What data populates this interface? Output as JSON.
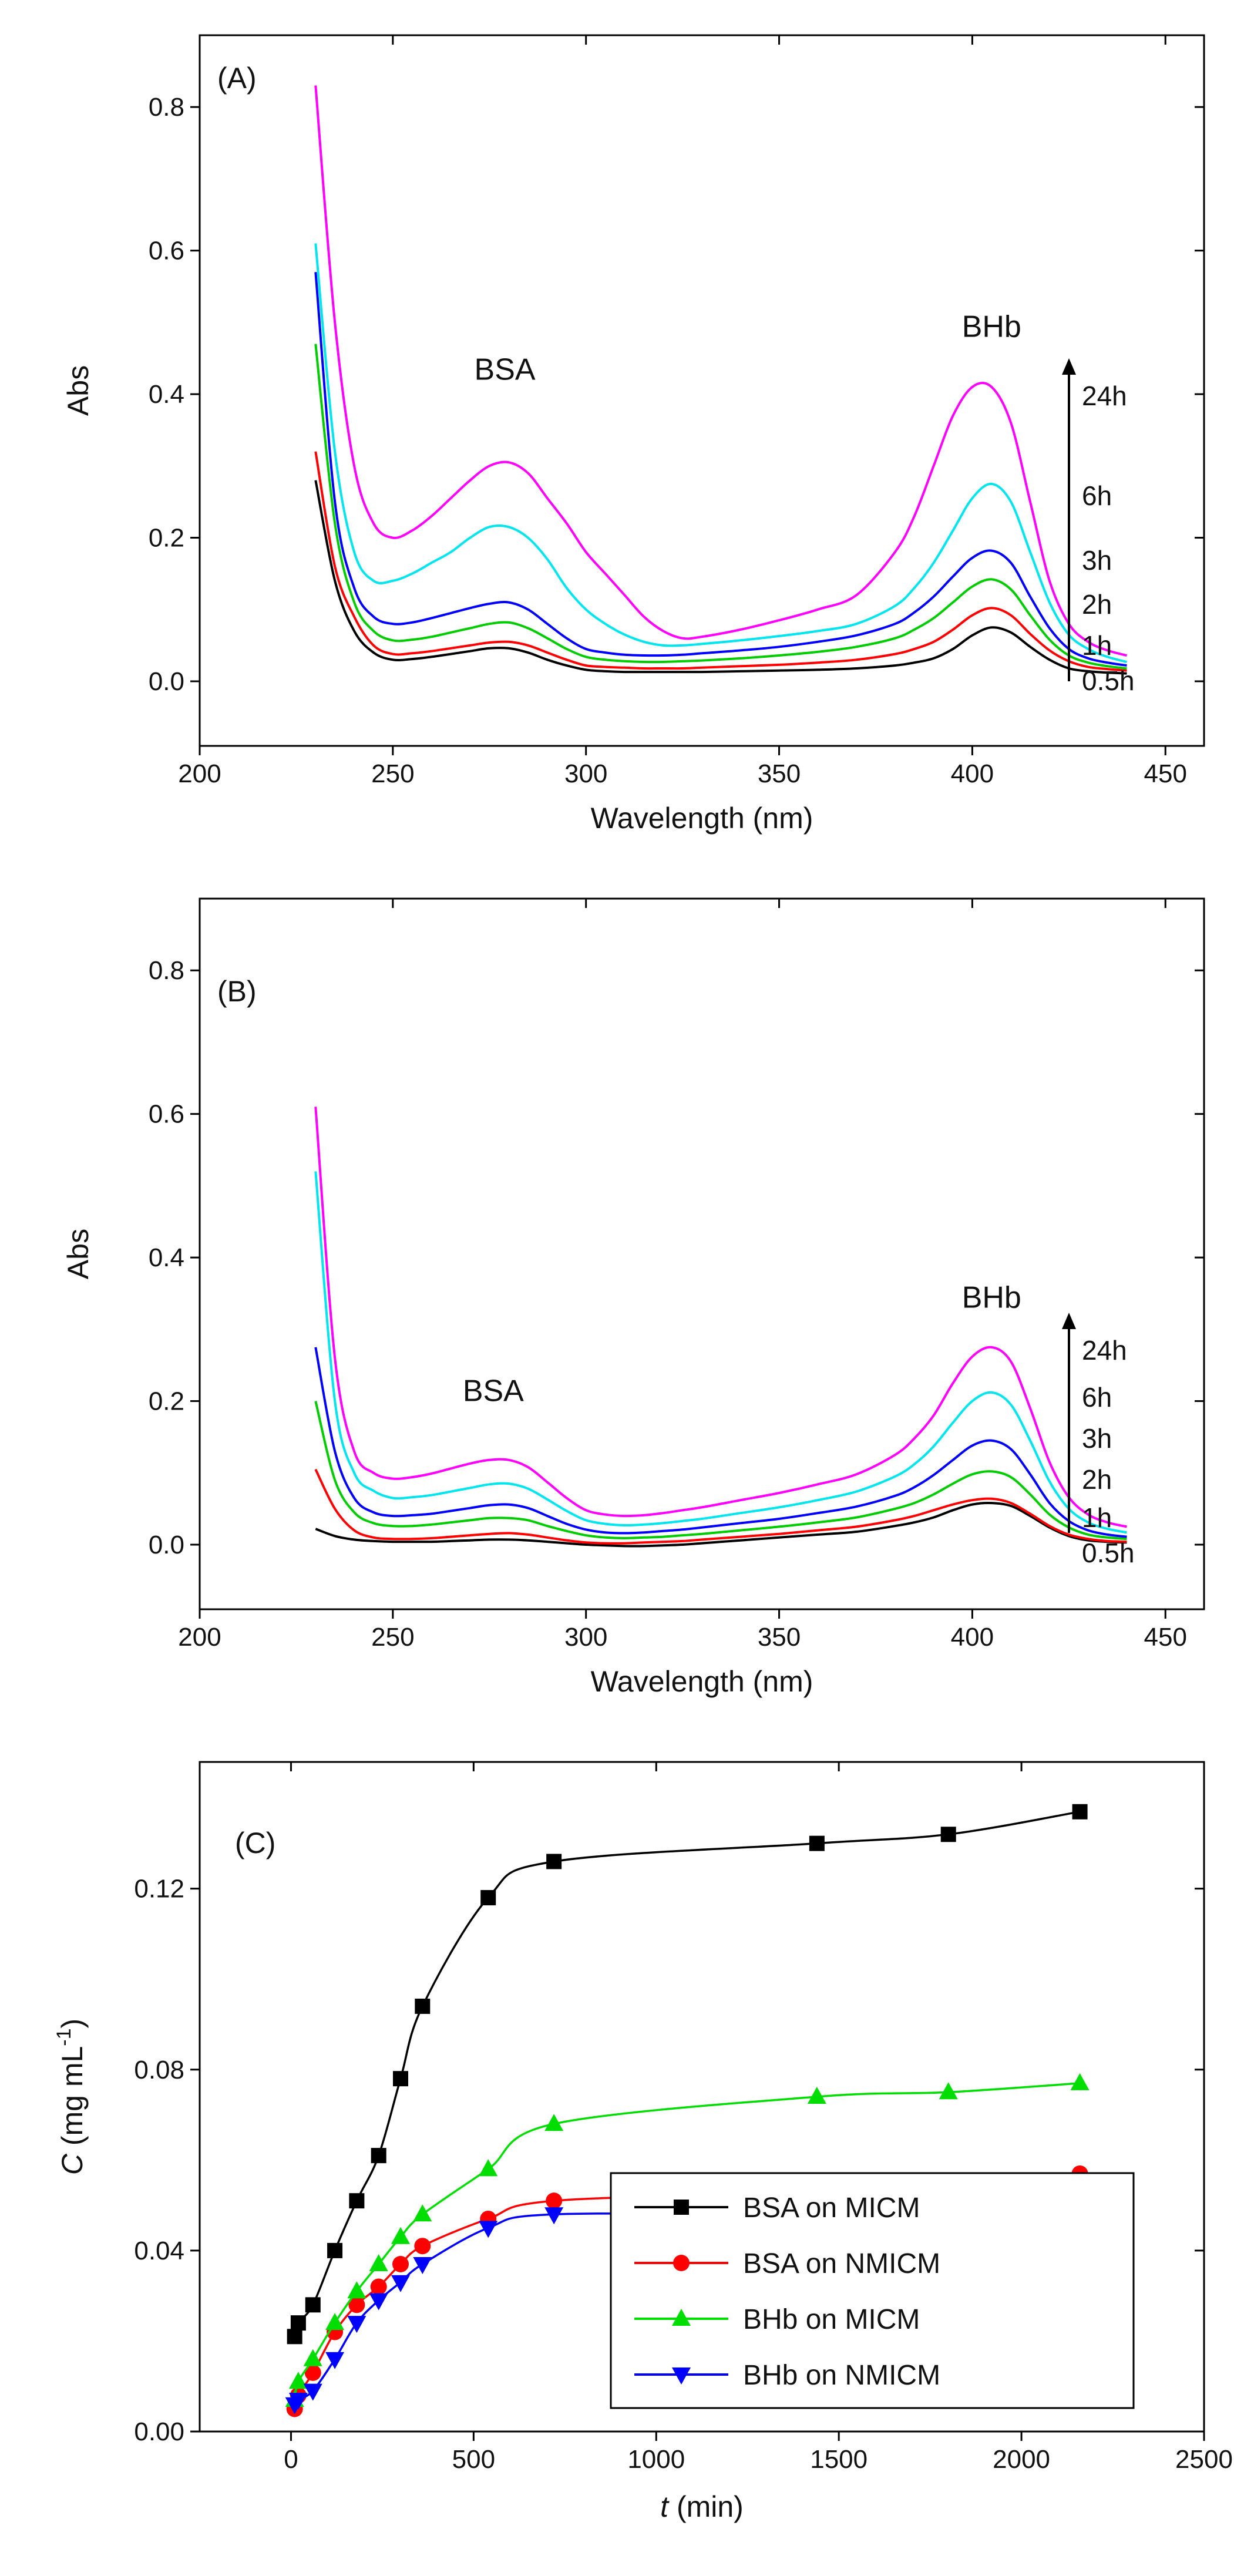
{
  "chart_data": [
    {
      "type": "line",
      "panel_label": "(A)",
      "xlabel": "Wavelength (nm)",
      "ylabel": "Abs",
      "xlim": [
        200,
        460
      ],
      "ylim": [
        -0.09,
        0.9
      ],
      "xticks": [
        200,
        250,
        300,
        350,
        400,
        450
      ],
      "yticks": [
        0.0,
        0.2,
        0.4,
        0.6,
        0.8
      ],
      "tick_labels_x": [
        "200",
        "250",
        "300",
        "350",
        "400",
        "450"
      ],
      "tick_labels_y": [
        "0.0",
        "0.2",
        "0.4",
        "0.6",
        "0.8"
      ],
      "annotations": [
        "BSA",
        "BHb"
      ],
      "time_arrow_labels": [
        "24h",
        "6h",
        "3h",
        "2h",
        "1h",
        "0.5h"
      ],
      "x": [
        230,
        235,
        240,
        245,
        250,
        255,
        260,
        265,
        270,
        275,
        280,
        285,
        290,
        295,
        300,
        305,
        310,
        315,
        320,
        325,
        330,
        340,
        350,
        360,
        370,
        380,
        385,
        390,
        395,
        400,
        405,
        410,
        415,
        420,
        425,
        430,
        435,
        440
      ],
      "series": [
        {
          "color": "#000000",
          "values": [
            0.28,
            0.14,
            0.07,
            0.04,
            0.03,
            0.031,
            0.034,
            0.038,
            0.042,
            0.046,
            0.046,
            0.04,
            0.03,
            0.022,
            0.016,
            0.014,
            0.013,
            0.013,
            0.013,
            0.013,
            0.013,
            0.014,
            0.015,
            0.016,
            0.018,
            0.022,
            0.026,
            0.032,
            0.045,
            0.064,
            0.075,
            0.068,
            0.048,
            0.03,
            0.018,
            0.014,
            0.012,
            0.011
          ]
        },
        {
          "color": "#ff0000",
          "values": [
            0.32,
            0.16,
            0.09,
            0.05,
            0.038,
            0.039,
            0.042,
            0.046,
            0.05,
            0.054,
            0.055,
            0.05,
            0.04,
            0.03,
            0.022,
            0.02,
            0.019,
            0.018,
            0.018,
            0.018,
            0.019,
            0.021,
            0.023,
            0.026,
            0.03,
            0.038,
            0.045,
            0.055,
            0.072,
            0.092,
            0.102,
            0.092,
            0.066,
            0.043,
            0.028,
            0.02,
            0.017,
            0.015
          ]
        },
        {
          "color": "#00cc00",
          "values": [
            0.47,
            0.22,
            0.11,
            0.07,
            0.057,
            0.058,
            0.062,
            0.068,
            0.074,
            0.08,
            0.082,
            0.074,
            0.06,
            0.045,
            0.034,
            0.03,
            0.028,
            0.027,
            0.027,
            0.028,
            0.029,
            0.032,
            0.036,
            0.041,
            0.048,
            0.06,
            0.072,
            0.088,
            0.11,
            0.132,
            0.142,
            0.128,
            0.092,
            0.058,
            0.036,
            0.026,
            0.021,
            0.018
          ]
        },
        {
          "color": "#0000ff",
          "values": [
            0.57,
            0.25,
            0.13,
            0.09,
            0.08,
            0.082,
            0.088,
            0.095,
            0.102,
            0.108,
            0.11,
            0.1,
            0.08,
            0.06,
            0.045,
            0.04,
            0.037,
            0.036,
            0.036,
            0.037,
            0.039,
            0.043,
            0.048,
            0.055,
            0.064,
            0.08,
            0.096,
            0.118,
            0.146,
            0.172,
            0.182,
            0.165,
            0.118,
            0.074,
            0.045,
            0.032,
            0.026,
            0.022
          ]
        },
        {
          "color": "#00e5ee",
          "values": [
            0.61,
            0.32,
            0.18,
            0.14,
            0.14,
            0.15,
            0.165,
            0.18,
            0.2,
            0.215,
            0.215,
            0.2,
            0.17,
            0.13,
            0.1,
            0.08,
            0.065,
            0.055,
            0.05,
            0.05,
            0.052,
            0.057,
            0.063,
            0.07,
            0.08,
            0.105,
            0.13,
            0.165,
            0.21,
            0.255,
            0.275,
            0.25,
            0.18,
            0.11,
            0.065,
            0.045,
            0.034,
            0.027
          ]
        },
        {
          "color": "#ff00ff",
          "values": [
            0.83,
            0.5,
            0.3,
            0.22,
            0.2,
            0.21,
            0.23,
            0.255,
            0.28,
            0.3,
            0.305,
            0.29,
            0.255,
            0.22,
            0.18,
            0.15,
            0.12,
            0.09,
            0.07,
            0.06,
            0.062,
            0.072,
            0.085,
            0.1,
            0.12,
            0.18,
            0.23,
            0.3,
            0.37,
            0.41,
            0.41,
            0.36,
            0.25,
            0.14,
            0.08,
            0.055,
            0.043,
            0.036
          ]
        }
      ]
    },
    {
      "type": "line",
      "panel_label": "(B)",
      "xlabel": "Wavelength (nm)",
      "ylabel": "Abs",
      "xlim": [
        200,
        460
      ],
      "ylim": [
        -0.09,
        0.9
      ],
      "xticks": [
        200,
        250,
        300,
        350,
        400,
        450
      ],
      "yticks": [
        0.0,
        0.2,
        0.4,
        0.6,
        0.8
      ],
      "tick_labels_x": [
        "200",
        "250",
        "300",
        "350",
        "400",
        "450"
      ],
      "tick_labels_y": [
        "0.0",
        "0.2",
        "0.4",
        "0.6",
        "0.8"
      ],
      "annotations": [
        "BSA",
        "BHb"
      ],
      "time_arrow_labels": [
        "24h",
        "6h",
        "3h",
        "2h",
        "1h",
        "0.5h"
      ],
      "x": [
        230,
        235,
        240,
        245,
        250,
        255,
        260,
        265,
        270,
        275,
        280,
        285,
        290,
        295,
        300,
        305,
        310,
        315,
        320,
        325,
        330,
        340,
        350,
        360,
        370,
        380,
        385,
        390,
        395,
        400,
        405,
        410,
        415,
        420,
        425,
        430,
        435,
        440
      ],
      "series": [
        {
          "color": "#000000",
          "values": [
            0.022,
            0.012,
            0.007,
            0.005,
            0.004,
            0.004,
            0.004,
            0.005,
            0.006,
            0.007,
            0.007,
            0.006,
            0.004,
            0.002,
            0.0,
            -0.001,
            -0.002,
            -0.002,
            -0.001,
            0.0,
            0.002,
            0.006,
            0.01,
            0.014,
            0.018,
            0.026,
            0.031,
            0.038,
            0.048,
            0.056,
            0.058,
            0.054,
            0.04,
            0.024,
            0.012,
            0.006,
            0.004,
            0.003
          ]
        },
        {
          "color": "#ff0000",
          "values": [
            0.105,
            0.05,
            0.02,
            0.01,
            0.008,
            0.008,
            0.009,
            0.011,
            0.013,
            0.015,
            0.016,
            0.014,
            0.01,
            0.006,
            0.003,
            0.002,
            0.002,
            0.003,
            0.004,
            0.005,
            0.007,
            0.011,
            0.015,
            0.02,
            0.025,
            0.034,
            0.04,
            0.048,
            0.056,
            0.062,
            0.064,
            0.058,
            0.043,
            0.026,
            0.014,
            0.008,
            0.005,
            0.004
          ]
        },
        {
          "color": "#00cc00",
          "values": [
            0.2,
            0.09,
            0.045,
            0.03,
            0.026,
            0.026,
            0.028,
            0.031,
            0.034,
            0.037,
            0.037,
            0.034,
            0.026,
            0.019,
            0.013,
            0.01,
            0.009,
            0.01,
            0.011,
            0.013,
            0.015,
            0.02,
            0.025,
            0.031,
            0.038,
            0.05,
            0.058,
            0.07,
            0.085,
            0.098,
            0.102,
            0.094,
            0.07,
            0.042,
            0.024,
            0.014,
            0.01,
            0.008
          ]
        },
        {
          "color": "#0000ff",
          "values": [
            0.275,
            0.13,
            0.065,
            0.045,
            0.04,
            0.041,
            0.043,
            0.047,
            0.051,
            0.055,
            0.056,
            0.051,
            0.04,
            0.029,
            0.021,
            0.017,
            0.016,
            0.017,
            0.019,
            0.021,
            0.024,
            0.03,
            0.036,
            0.044,
            0.053,
            0.068,
            0.08,
            0.097,
            0.118,
            0.138,
            0.145,
            0.133,
            0.098,
            0.058,
            0.033,
            0.02,
            0.014,
            0.011
          ]
        },
        {
          "color": "#00e5ee",
          "values": [
            0.52,
            0.2,
            0.1,
            0.075,
            0.065,
            0.066,
            0.069,
            0.074,
            0.079,
            0.084,
            0.085,
            0.078,
            0.063,
            0.047,
            0.034,
            0.029,
            0.027,
            0.028,
            0.03,
            0.033,
            0.036,
            0.044,
            0.052,
            0.062,
            0.074,
            0.095,
            0.112,
            0.137,
            0.17,
            0.2,
            0.212,
            0.195,
            0.145,
            0.088,
            0.05,
            0.031,
            0.022,
            0.017
          ]
        },
        {
          "color": "#ff00ff",
          "values": [
            0.61,
            0.26,
            0.13,
            0.1,
            0.092,
            0.094,
            0.099,
            0.106,
            0.113,
            0.118,
            0.118,
            0.108,
            0.087,
            0.065,
            0.048,
            0.042,
            0.04,
            0.041,
            0.044,
            0.048,
            0.052,
            0.062,
            0.072,
            0.084,
            0.098,
            0.125,
            0.148,
            0.18,
            0.225,
            0.262,
            0.275,
            0.255,
            0.19,
            0.115,
            0.066,
            0.042,
            0.031,
            0.025
          ]
        }
      ]
    },
    {
      "type": "scatter",
      "panel_label": "(C)",
      "xlabel_italic": "t",
      "xlabel_rest": " (min)",
      "ylabel_italic": "C",
      "ylabel_rest": " (mg mL",
      "ylabel_sup": "-1",
      "ylabel_close": ")",
      "xlim": [
        -250,
        2500
      ],
      "ylim": [
        0.0,
        0.148
      ],
      "xticks": [
        0,
        500,
        1000,
        1500,
        2000,
        2500
      ],
      "yticks": [
        0.0,
        0.04,
        0.08,
        0.12
      ],
      "tick_labels_x": [
        "0",
        "500",
        "1000",
        "1500",
        "2000",
        "2500"
      ],
      "tick_labels_y": [
        "0.00",
        "0.04",
        "0.08",
        "0.12"
      ],
      "x": [
        10,
        20,
        60,
        120,
        180,
        240,
        300,
        360,
        540,
        720,
        1440,
        1800,
        2160
      ],
      "series": [
        {
          "name": "BSA on MICM",
          "color": "#000000",
          "marker": "square",
          "values": [
            0.021,
            0.024,
            0.028,
            0.04,
            0.051,
            0.061,
            0.078,
            0.094,
            0.118,
            0.126,
            0.13,
            0.132,
            0.137
          ]
        },
        {
          "name": "BSA on NMICM",
          "color": "#ff0000",
          "marker": "circle",
          "values": [
            0.005,
            0.008,
            0.013,
            0.022,
            0.028,
            0.032,
            0.037,
            0.041,
            0.047,
            0.051,
            0.053,
            0.055,
            0.057
          ]
        },
        {
          "name": "BHb on MICM",
          "color": "#00dd00",
          "marker": "triangle-up",
          "values": [
            0.007,
            0.011,
            0.016,
            0.024,
            0.031,
            0.037,
            0.043,
            0.048,
            0.058,
            0.068,
            0.074,
            0.075,
            0.077
          ]
        },
        {
          "name": "BHb on NMICM",
          "color": "#0000ff",
          "marker": "triangle-down",
          "values": [
            0.006,
            0.007,
            0.009,
            0.016,
            0.024,
            0.029,
            0.033,
            0.037,
            0.045,
            0.048,
            0.048,
            0.049,
            0.05
          ]
        }
      ]
    }
  ]
}
